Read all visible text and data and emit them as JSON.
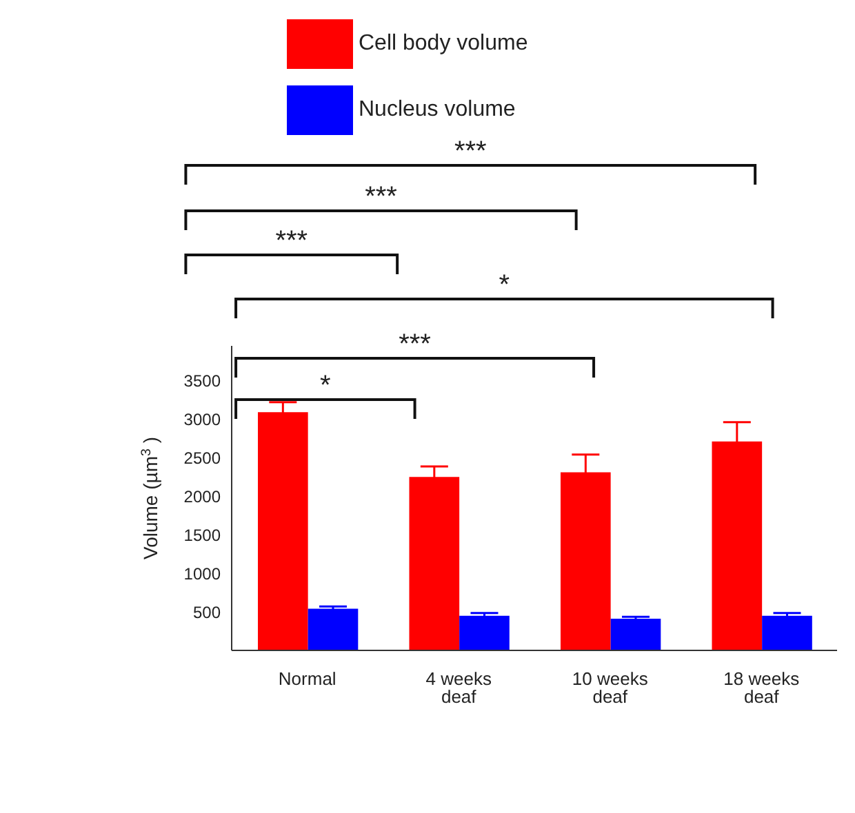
{
  "chart_data": {
    "type": "bar",
    "ylabel": "Volume (µm$^{3}$ )",
    "categories": [
      "Normal",
      "4 weeks deaf",
      "10 weeks deaf",
      "18 weeks deaf"
    ],
    "series": [
      {
        "name": "Cell body volume",
        "color": "#ff0000",
        "values": [
          3090,
          2250,
          2310,
          2710
        ],
        "errors": [
          130,
          135,
          230,
          250
        ]
      },
      {
        "name": "Nucleus volume",
        "color": "#0000ff",
        "values": [
          540,
          450,
          410,
          450
        ],
        "errors": [
          30,
          35,
          25,
          35
        ]
      }
    ],
    "ylim": [
      0,
      3950
    ],
    "yticks": [
      500,
      1000,
      1500,
      2000,
      2500,
      3000,
      3500
    ],
    "grid": false,
    "legend": "top",
    "annotations": [
      "***",
      "***",
      "***",
      "*",
      "***",
      "*"
    ]
  }
}
